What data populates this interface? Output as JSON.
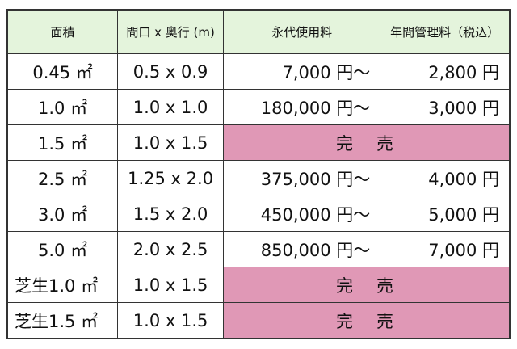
{
  "table": {
    "header": [
      "面積",
      "間口 x 奥行 (m)",
      "永代使用料",
      "年間管理料（税込）"
    ],
    "rows": [
      [
        "0.45 ㎡",
        "0.5 x 0.9",
        "7,000 円〜",
        "2,800 円"
      ],
      [
        "1.0 ㎡",
        "1.0 x 1.0",
        "180,000 円〜",
        "3,000 円"
      ],
      [
        "1.5 ㎡",
        "1.0 x 1.5",
        "完　売"
      ],
      [
        "2.5 ㎡",
        "1.25 x 2.0",
        "375,000 円〜",
        "4,000 円"
      ],
      [
        "3.0 ㎡",
        "1.5 x 2.0",
        "450,000 円〜",
        "5,000 円"
      ],
      [
        "5.0 ㎡",
        "2.0 x 2.5",
        "850,000 円〜",
        "7,000 円"
      ],
      [
        "芝生1.0 ㎡",
        "1.0 x 1.5",
        "完　売"
      ],
      [
        "芝生1.5 ㎡",
        "1.0 x 1.5",
        "完　売"
      ]
    ]
  }
}
